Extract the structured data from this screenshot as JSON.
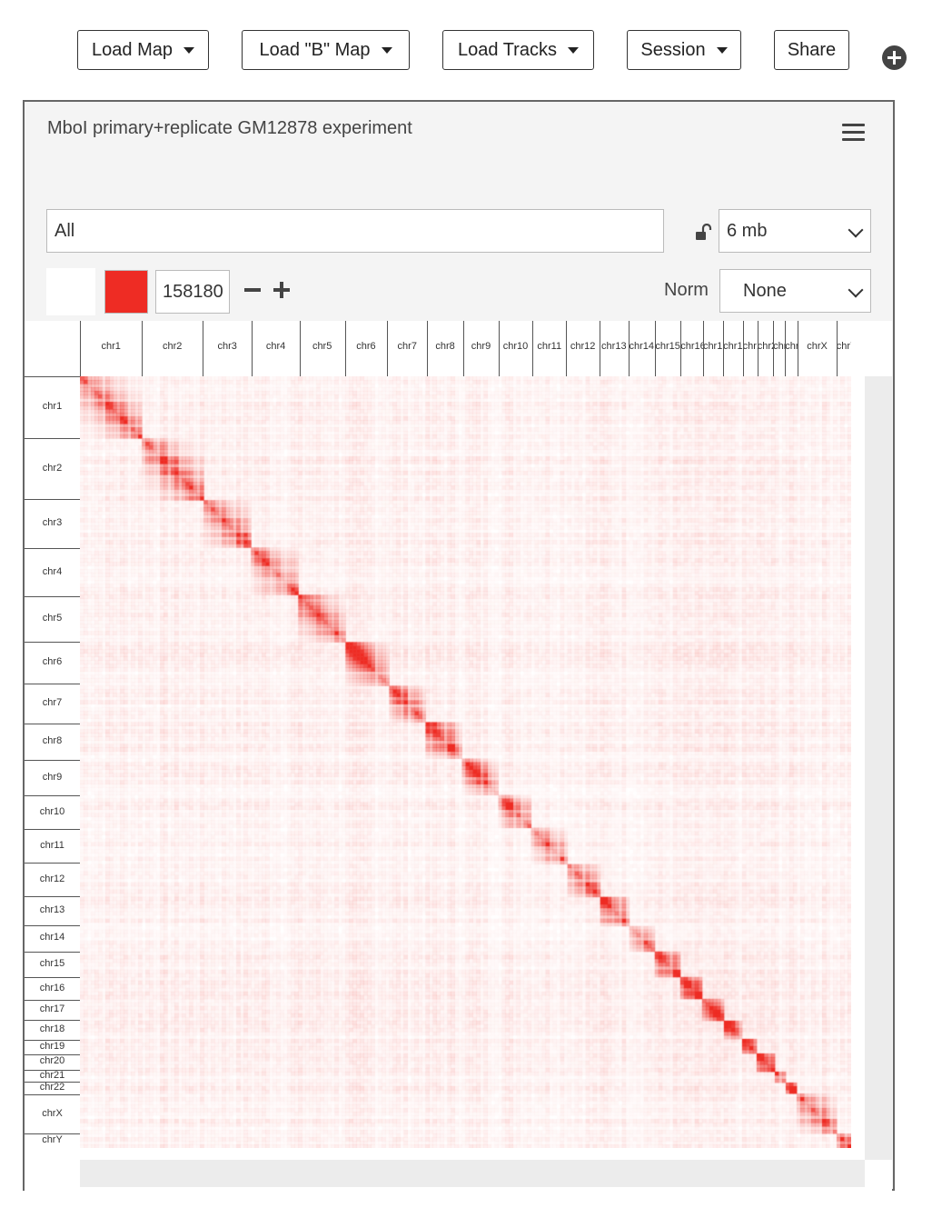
{
  "toolbar": {
    "load_map": "Load Map",
    "load_b_map": "Load \"B\" Map",
    "load_tracks": "Load Tracks",
    "session": "Session",
    "share": "Share"
  },
  "panel": {
    "title": "MboI primary+replicate GM12878 experiment",
    "locus": "All",
    "resolution": "6 mb",
    "color_value": "158180",
    "norm_label": "Norm",
    "norm_value": "None"
  },
  "colors": {
    "accent": "#ee2c24"
  },
  "chromosomes": [
    {
      "name": "chr1",
      "size": 249
    },
    {
      "name": "chr2",
      "size": 243
    },
    {
      "name": "chr3",
      "size": 198
    },
    {
      "name": "chr4",
      "size": 191
    },
    {
      "name": "chr5",
      "size": 181
    },
    {
      "name": "chr6",
      "size": 171
    },
    {
      "name": "chr7",
      "size": 159
    },
    {
      "name": "chr8",
      "size": 146
    },
    {
      "name": "chr9",
      "size": 141
    },
    {
      "name": "chr10",
      "size": 136
    },
    {
      "name": "chr11",
      "size": 135
    },
    {
      "name": "chr12",
      "size": 134
    },
    {
      "name": "chr13",
      "size": 115
    },
    {
      "name": "chr14",
      "size": 107
    },
    {
      "name": "chr15",
      "size": 103
    },
    {
      "name": "chr16",
      "size": 90
    },
    {
      "name": "chr17",
      "size": 81
    },
    {
      "name": "chr18",
      "size": 78
    },
    {
      "name": "chr19",
      "size": 59
    },
    {
      "name": "chr20",
      "size": 63
    },
    {
      "name": "chr21",
      "size": 48
    },
    {
      "name": "chr22",
      "size": 51
    },
    {
      "name": "chrX",
      "size": 155
    },
    {
      "name": "chrY",
      "size": 59
    }
  ]
}
